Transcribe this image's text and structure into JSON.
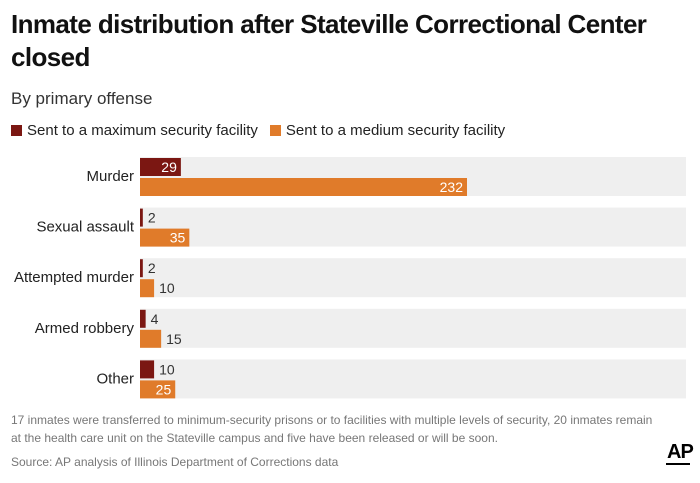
{
  "title": "Inmate distribution after Stateville Correctional Center closed",
  "subtitle": "By primary offense",
  "legend": {
    "max_label": "Sent to a maximum security facility",
    "med_label": "Sent to a medium security facility"
  },
  "colors": {
    "max": "#7b1712",
    "med": "#e07b2a",
    "band": "#efefef",
    "label_light": "#ffffff",
    "label_dark": "#333333"
  },
  "chart_data": {
    "type": "bar",
    "orientation": "horizontal",
    "categories": [
      "Murder",
      "Sexual assault",
      "Attempted murder",
      "Armed robbery",
      "Other"
    ],
    "series": [
      {
        "name": "Sent to a maximum security facility",
        "values": [
          29,
          2,
          2,
          4,
          10
        ]
      },
      {
        "name": "Sent to a medium security facility",
        "values": [
          232,
          35,
          10,
          15,
          25
        ]
      }
    ],
    "xlim": [
      0,
      232
    ],
    "grid": false,
    "legend_position": "top-left"
  },
  "note": "17 inmates were transferred to minimum-security prisons or to facilities with multiple levels of security, 20 inmates remain at the health care unit on the Stateville campus and five have been released or will be soon.",
  "source": "Source: AP analysis of Illinois Department of Corrections data",
  "logo_text": "AP"
}
